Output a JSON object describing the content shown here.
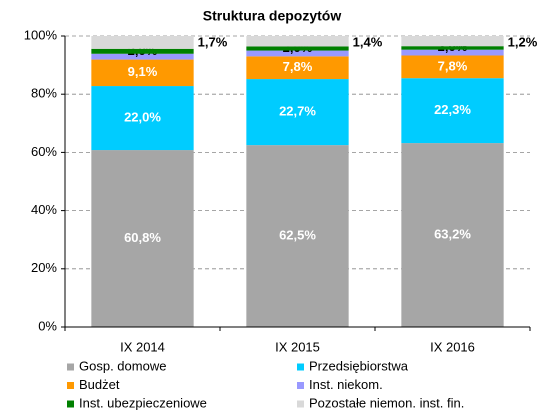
{
  "chart_data": {
    "type": "stacked_bar",
    "title": "Struktura depozytów",
    "categories": [
      "IX 2014",
      "IX 2015",
      "IX 2016"
    ],
    "series": [
      {
        "name": "Gosp. domowe",
        "color": "#a6a6a6",
        "values": [
          60.8,
          62.5,
          63.2
        ],
        "value_labels": [
          "60,8%",
          "62,5%",
          "63,2%"
        ]
      },
      {
        "name": "Przedsiębiorstwa",
        "color": "#00ccff",
        "values": [
          22.0,
          22.7,
          22.3
        ],
        "value_labels": [
          "22,0%",
          "22,7%",
          "22,3%"
        ]
      },
      {
        "name": "Budżet",
        "color": "#ff9900",
        "values": [
          9.1,
          7.8,
          7.8
        ],
        "value_labels": [
          "9,1%",
          "7,8%",
          "7,8%"
        ]
      },
      {
        "name": "Inst. niekom.",
        "color": "#9999ff",
        "values": [
          2.0,
          2.0,
          2.0
        ],
        "value_labels": [
          "2,0%",
          "2,0%",
          "2,0%"
        ]
      },
      {
        "name": "Inst. ubezpieczeniowe",
        "color": "#008000",
        "values": [
          1.7,
          1.4,
          1.2
        ],
        "value_labels": [
          "1,7%",
          "1,4%",
          "1,2%"
        ]
      },
      {
        "name": "Pozostałe niemon. inst. fin.",
        "color": "#d9d9d9",
        "values": [
          4.4,
          3.6,
          3.5
        ]
      }
    ],
    "ylim": [
      0,
      100
    ],
    "yticks": [
      {
        "value": 0,
        "label": "0%"
      },
      {
        "value": 20,
        "label": "20%"
      },
      {
        "value": 40,
        "label": "40%"
      },
      {
        "value": 60,
        "label": "60%"
      },
      {
        "value": 80,
        "label": "80%"
      },
      {
        "value": 100,
        "label": "100%"
      }
    ],
    "grid": true
  }
}
